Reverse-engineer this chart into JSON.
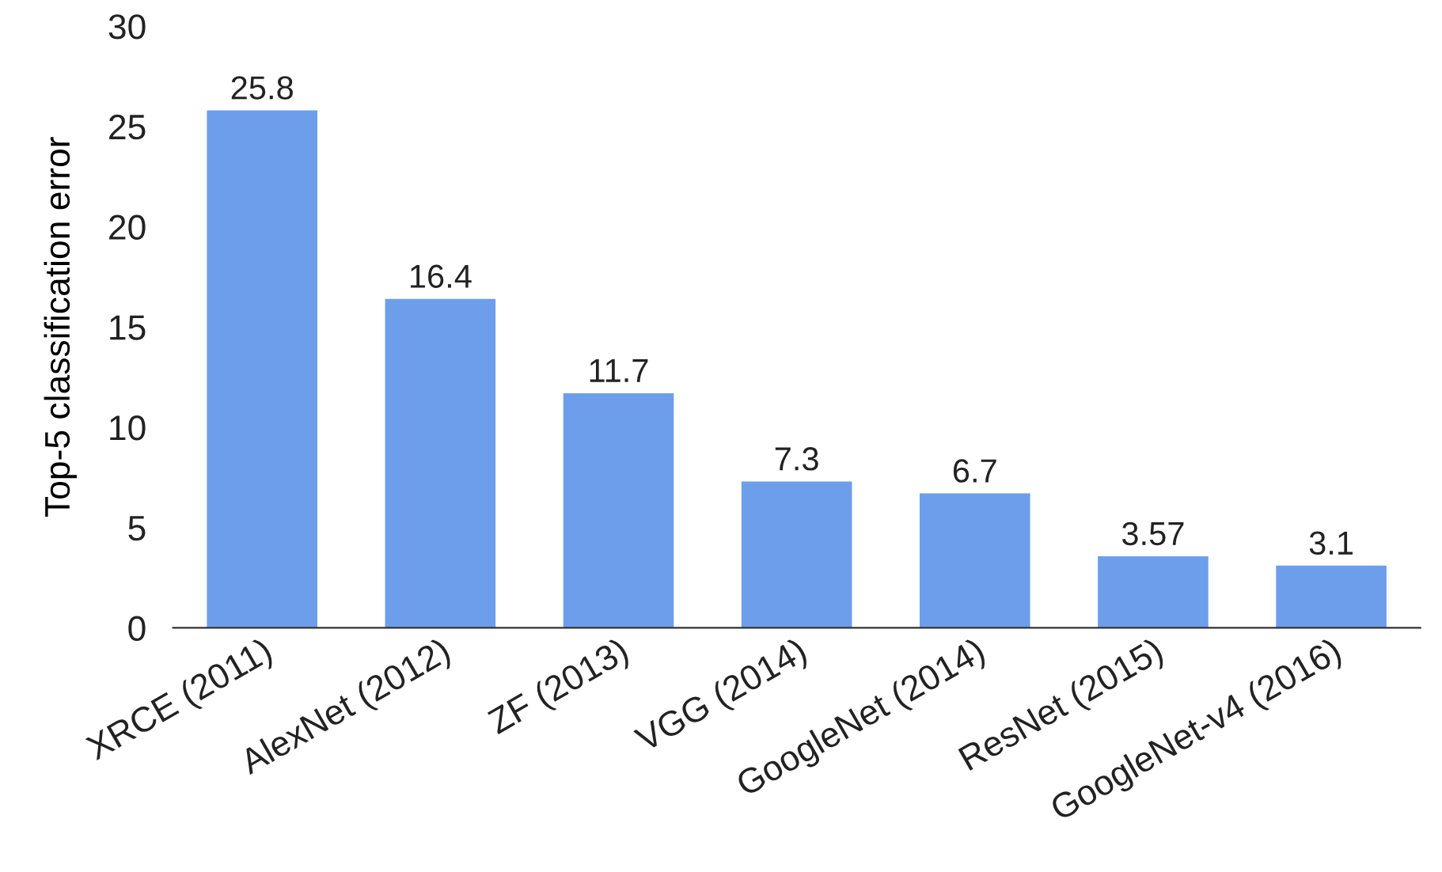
{
  "chart_data": {
    "type": "bar",
    "ylabel": "Top-5 classification error",
    "categories": [
      "XRCE (2011)",
      "AlexNet (2012)",
      "ZF (2013)",
      "VGG (2014)",
      "GoogleNet (2014)",
      "ResNet (2015)",
      "GoogleNet-v4 (2016)"
    ],
    "values": [
      25.8,
      16.4,
      11.7,
      7.3,
      6.7,
      3.57,
      3.1
    ],
    "color": "#6d9eeb",
    "ylim": [
      0,
      30
    ],
    "yticks": [
      0,
      5,
      10,
      15,
      20,
      25,
      30
    ],
    "grid": false,
    "data_labels": true
  }
}
